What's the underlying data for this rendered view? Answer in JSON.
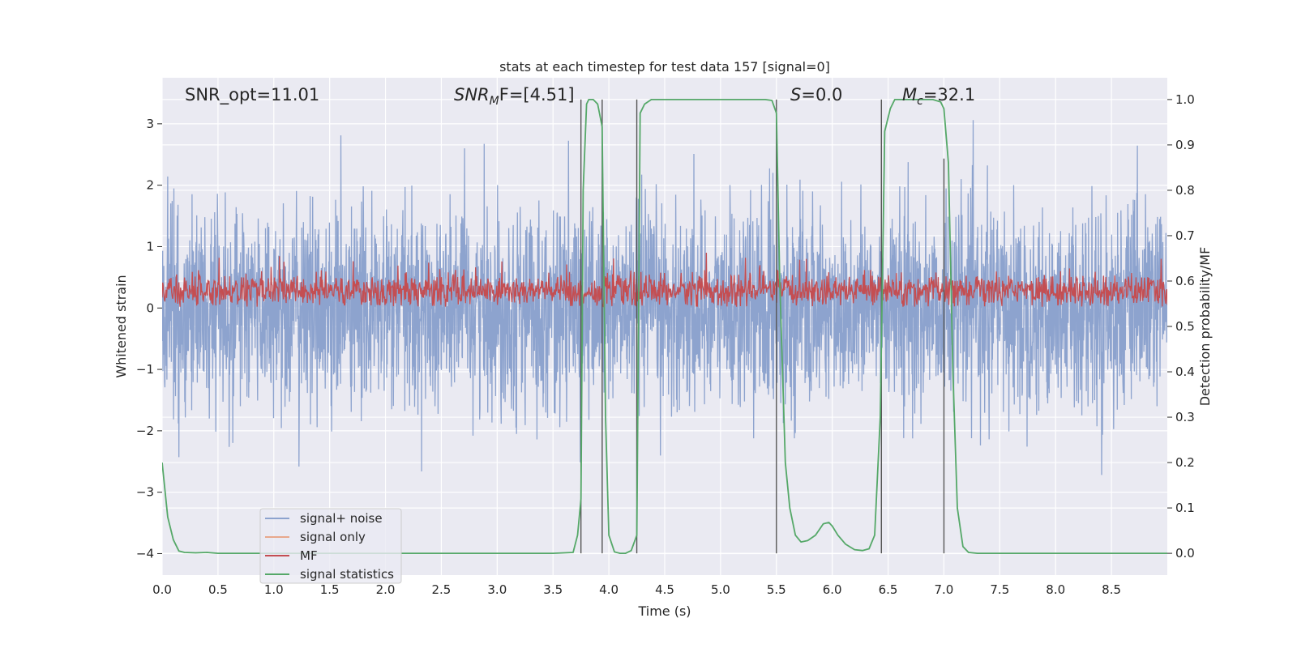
{
  "chart_data": {
    "type": "line",
    "title": "stats at each timestep for test data 157 [signal=0]",
    "xlabel": "Time (s)",
    "ylabel": "Whitened strain",
    "y2label": "Detection probability/MF",
    "xlim": [
      0.0,
      9.0
    ],
    "ylim": [
      -4.35,
      3.75
    ],
    "y2lim": [
      -0.048,
      1.048
    ],
    "xticks": [
      "0.0",
      "0.5",
      "1.0",
      "1.5",
      "2.0",
      "2.5",
      "3.0",
      "3.5",
      "4.0",
      "4.5",
      "5.0",
      "5.5",
      "6.0",
      "6.5",
      "7.0",
      "7.5",
      "8.0",
      "8.5"
    ],
    "yticks": [
      "3",
      "2",
      "1",
      "0",
      "−1",
      "−2",
      "−3",
      "−4"
    ],
    "y2ticks": [
      "1.0",
      "0.9",
      "0.8",
      "0.7",
      "0.6",
      "0.5",
      "0.4",
      "0.3",
      "0.2",
      "0.1",
      "0.0"
    ],
    "annotations": {
      "snr_opt": "SNR_opt=11.01",
      "snr_mf_main": "SNR",
      "snr_mf_sub": "M",
      "snr_mf_rest": "F=[4.51]",
      "s_main": "S",
      "s_rest": "=0.0",
      "mc_main": "M",
      "mc_sub": "c",
      "mc_rest": "=32.1"
    },
    "legend": {
      "location": "lower-left",
      "entries": [
        "signal+ noise",
        "signal only",
        "MF",
        "signal statistics"
      ]
    },
    "colors": {
      "noise": "#8da3ce",
      "signal_only": "#e8a88c",
      "mf": "#c44e52",
      "stats": "#55a868",
      "vlines": "#555555",
      "background": "#eaeaf2",
      "grid": "#ffffff"
    },
    "series": [
      {
        "name": "signal statistics",
        "axis": "right",
        "x": [
          0.0,
          0.05,
          0.1,
          0.15,
          0.2,
          0.3,
          0.4,
          0.5,
          1.0,
          2.0,
          3.0,
          3.5,
          3.68,
          3.72,
          3.75,
          3.77,
          3.8,
          3.82,
          3.86,
          3.9,
          3.94,
          3.97,
          4.0,
          4.05,
          4.1,
          4.15,
          4.2,
          4.25,
          4.28,
          4.32,
          4.38,
          4.45,
          5.0,
          5.4,
          5.46,
          5.5,
          5.53,
          5.58,
          5.62,
          5.67,
          5.72,
          5.78,
          5.85,
          5.92,
          5.97,
          6.0,
          6.05,
          6.12,
          6.2,
          6.27,
          6.33,
          6.38,
          6.43,
          6.47,
          6.52,
          6.56,
          6.62,
          6.7,
          6.8,
          6.9,
          6.97,
          7.0,
          7.04,
          7.08,
          7.12,
          7.17,
          7.22,
          7.3,
          8.0,
          9.0
        ],
        "y": [
          0.2,
          0.08,
          0.03,
          0.005,
          0.002,
          0.001,
          0.002,
          0.0,
          0.0,
          0.0,
          0.0,
          0.0,
          0.002,
          0.04,
          0.12,
          0.8,
          0.99,
          1.0,
          1.0,
          0.99,
          0.94,
          0.3,
          0.04,
          0.003,
          0.0,
          0.0,
          0.006,
          0.04,
          0.97,
          0.99,
          1.0,
          1.0,
          1.0,
          1.0,
          0.998,
          0.97,
          0.6,
          0.2,
          0.1,
          0.04,
          0.025,
          0.028,
          0.04,
          0.065,
          0.068,
          0.06,
          0.04,
          0.02,
          0.008,
          0.006,
          0.01,
          0.04,
          0.3,
          0.93,
          0.98,
          1.0,
          1.0,
          1.0,
          1.0,
          1.0,
          0.995,
          0.98,
          0.86,
          0.4,
          0.1,
          0.015,
          0.002,
          0.0,
          0.0,
          0.0
        ]
      },
      {
        "name": "signal+ noise",
        "axis": "left",
        "description": "whitened noisy strain, roughly Gaussian, std ~0.8"
      },
      {
        "name": "MF",
        "axis": "left",
        "description": "matched-filter output, band between ~0.0 and ~0.6 with spikes to ~0.9"
      },
      {
        "name": "signal only",
        "axis": "left",
        "description": "zero for signal=0"
      }
    ],
    "vertical_lines": {
      "x": [
        3.75,
        3.94,
        4.25,
        5.5,
        6.44,
        7.0
      ],
      "y2_top": [
        1.0,
        1.0,
        1.0,
        1.0,
        1.0,
        0.87
      ]
    }
  }
}
